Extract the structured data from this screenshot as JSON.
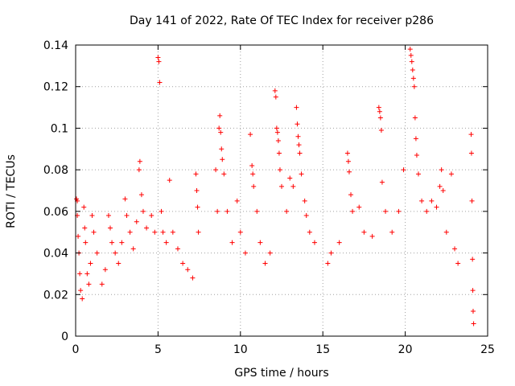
{
  "chart_data": {
    "type": "scatter",
    "title": "Day 141 of 2022, Rate Of TEC Index for receiver p286",
    "xlabel": "GPS time / hours",
    "ylabel": "ROTI / TECUs",
    "xlim": [
      0,
      25
    ],
    "ylim": [
      0,
      0.14
    ],
    "x_ticks": [
      "0",
      "5",
      "10",
      "15",
      "20",
      "25"
    ],
    "y_ticks": [
      "0",
      "0.02",
      "0.04",
      "0.06",
      "0.08",
      "0.1",
      "0.12",
      "0.14"
    ],
    "x_tick_values": [
      0,
      5,
      10,
      15,
      20,
      25
    ],
    "y_tick_values": [
      0,
      0.02,
      0.04,
      0.06,
      0.08,
      0.1,
      0.12,
      0.14
    ],
    "grid": true,
    "marker": "+",
    "marker_color": "#ff0000",
    "series": [
      {
        "name": "ROTI",
        "points": [
          [
            0.05,
            0.066
          ],
          [
            0.1,
            0.065
          ],
          [
            0.1,
            0.058
          ],
          [
            0.15,
            0.048
          ],
          [
            0.2,
            0.04
          ],
          [
            0.25,
            0.03
          ],
          [
            0.3,
            0.022
          ],
          [
            0.4,
            0.018
          ],
          [
            0.5,
            0.062
          ],
          [
            0.55,
            0.052
          ],
          [
            0.6,
            0.045
          ],
          [
            0.7,
            0.03
          ],
          [
            0.8,
            0.025
          ],
          [
            0.9,
            0.035
          ],
          [
            1.0,
            0.058
          ],
          [
            1.1,
            0.05
          ],
          [
            1.3,
            0.04
          ],
          [
            1.6,
            0.025
          ],
          [
            1.8,
            0.032
          ],
          [
            2.0,
            0.058
          ],
          [
            2.1,
            0.052
          ],
          [
            2.2,
            0.045
          ],
          [
            2.4,
            0.04
          ],
          [
            2.6,
            0.035
          ],
          [
            2.8,
            0.045
          ],
          [
            3.0,
            0.066
          ],
          [
            3.1,
            0.058
          ],
          [
            3.3,
            0.05
          ],
          [
            3.5,
            0.042
          ],
          [
            3.7,
            0.055
          ],
          [
            3.9,
            0.084
          ],
          [
            3.85,
            0.08
          ],
          [
            4.0,
            0.068
          ],
          [
            4.1,
            0.06
          ],
          [
            4.3,
            0.052
          ],
          [
            4.6,
            0.058
          ],
          [
            4.8,
            0.05
          ],
          [
            5.0,
            0.134
          ],
          [
            5.05,
            0.132
          ],
          [
            5.1,
            0.122
          ],
          [
            5.2,
            0.06
          ],
          [
            5.3,
            0.05
          ],
          [
            5.5,
            0.045
          ],
          [
            5.7,
            0.075
          ],
          [
            5.9,
            0.05
          ],
          [
            6.2,
            0.042
          ],
          [
            6.5,
            0.035
          ],
          [
            6.8,
            0.032
          ],
          [
            7.1,
            0.028
          ],
          [
            7.3,
            0.078
          ],
          [
            7.35,
            0.07
          ],
          [
            7.4,
            0.062
          ],
          [
            7.45,
            0.05
          ],
          [
            8.5,
            0.08
          ],
          [
            8.6,
            0.06
          ],
          [
            8.7,
            0.1
          ],
          [
            8.75,
            0.106
          ],
          [
            8.8,
            0.098
          ],
          [
            8.85,
            0.09
          ],
          [
            8.9,
            0.085
          ],
          [
            9.0,
            0.078
          ],
          [
            9.2,
            0.06
          ],
          [
            9.5,
            0.045
          ],
          [
            9.8,
            0.065
          ],
          [
            10.0,
            0.05
          ],
          [
            10.3,
            0.04
          ],
          [
            10.6,
            0.097
          ],
          [
            10.7,
            0.082
          ],
          [
            10.75,
            0.078
          ],
          [
            10.8,
            0.072
          ],
          [
            11.0,
            0.06
          ],
          [
            11.2,
            0.045
          ],
          [
            11.5,
            0.035
          ],
          [
            11.8,
            0.04
          ],
          [
            12.1,
            0.118
          ],
          [
            12.15,
            0.115
          ],
          [
            12.2,
            0.1
          ],
          [
            12.25,
            0.098
          ],
          [
            12.3,
            0.094
          ],
          [
            12.35,
            0.088
          ],
          [
            12.4,
            0.08
          ],
          [
            12.5,
            0.072
          ],
          [
            12.8,
            0.06
          ],
          [
            13.0,
            0.076
          ],
          [
            13.2,
            0.072
          ],
          [
            13.4,
            0.11
          ],
          [
            13.45,
            0.102
          ],
          [
            13.5,
            0.096
          ],
          [
            13.55,
            0.092
          ],
          [
            13.6,
            0.088
          ],
          [
            13.7,
            0.078
          ],
          [
            13.9,
            0.065
          ],
          [
            14.0,
            0.058
          ],
          [
            14.2,
            0.05
          ],
          [
            14.5,
            0.045
          ],
          [
            15.3,
            0.035
          ],
          [
            15.5,
            0.04
          ],
          [
            16.0,
            0.045
          ],
          [
            16.5,
            0.088
          ],
          [
            16.55,
            0.084
          ],
          [
            16.6,
            0.079
          ],
          [
            16.7,
            0.068
          ],
          [
            16.8,
            0.06
          ],
          [
            17.2,
            0.062
          ],
          [
            17.5,
            0.05
          ],
          [
            18.0,
            0.048
          ],
          [
            18.4,
            0.11
          ],
          [
            18.45,
            0.108
          ],
          [
            18.5,
            0.105
          ],
          [
            18.55,
            0.099
          ],
          [
            18.6,
            0.074
          ],
          [
            18.8,
            0.06
          ],
          [
            19.2,
            0.05
          ],
          [
            19.6,
            0.06
          ],
          [
            19.9,
            0.08
          ],
          [
            20.3,
            0.138
          ],
          [
            20.35,
            0.135
          ],
          [
            20.4,
            0.132
          ],
          [
            20.45,
            0.128
          ],
          [
            20.5,
            0.124
          ],
          [
            20.55,
            0.12
          ],
          [
            20.6,
            0.105
          ],
          [
            20.65,
            0.095
          ],
          [
            20.7,
            0.087
          ],
          [
            20.8,
            0.078
          ],
          [
            21.0,
            0.065
          ],
          [
            21.3,
            0.06
          ],
          [
            21.6,
            0.065
          ],
          [
            21.9,
            0.062
          ],
          [
            22.1,
            0.072
          ],
          [
            22.2,
            0.08
          ],
          [
            22.3,
            0.07
          ],
          [
            22.5,
            0.05
          ],
          [
            22.8,
            0.078
          ],
          [
            23.0,
            0.042
          ],
          [
            23.2,
            0.035
          ],
          [
            24.0,
            0.097
          ],
          [
            24.02,
            0.088
          ],
          [
            24.05,
            0.065
          ],
          [
            24.08,
            0.037
          ],
          [
            24.1,
            0.022
          ],
          [
            24.12,
            0.012
          ],
          [
            24.15,
            0.006
          ]
        ]
      }
    ]
  }
}
